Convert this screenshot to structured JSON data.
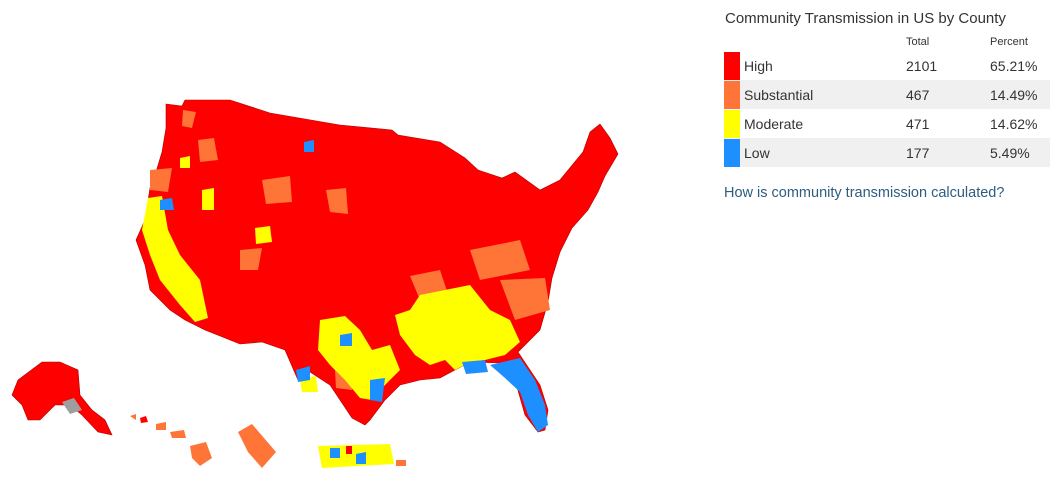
{
  "panel": {
    "title": "Community Transmission in US by County",
    "col_total": "Total",
    "col_percent": "Percent",
    "rows": [
      {
        "level": "High",
        "total": "2101",
        "percent": "65.21%",
        "color": "#ff0000"
      },
      {
        "level": "Substantial",
        "total": "467",
        "percent": "14.49%",
        "color": "#ff7538"
      },
      {
        "level": "Moderate",
        "total": "471",
        "percent": "14.62%",
        "color": "#ffff00"
      },
      {
        "level": "Low",
        "total": "177",
        "percent": "5.49%",
        "color": "#1e8fff"
      }
    ],
    "link_text": "How is community transmission calculated?"
  },
  "colors": {
    "high": "#ff0000",
    "substantial": "#ff7538",
    "moderate": "#ffff00",
    "low": "#1e8fff",
    "no_data": "#9e9e9e",
    "link": "#2d5c7f"
  }
}
